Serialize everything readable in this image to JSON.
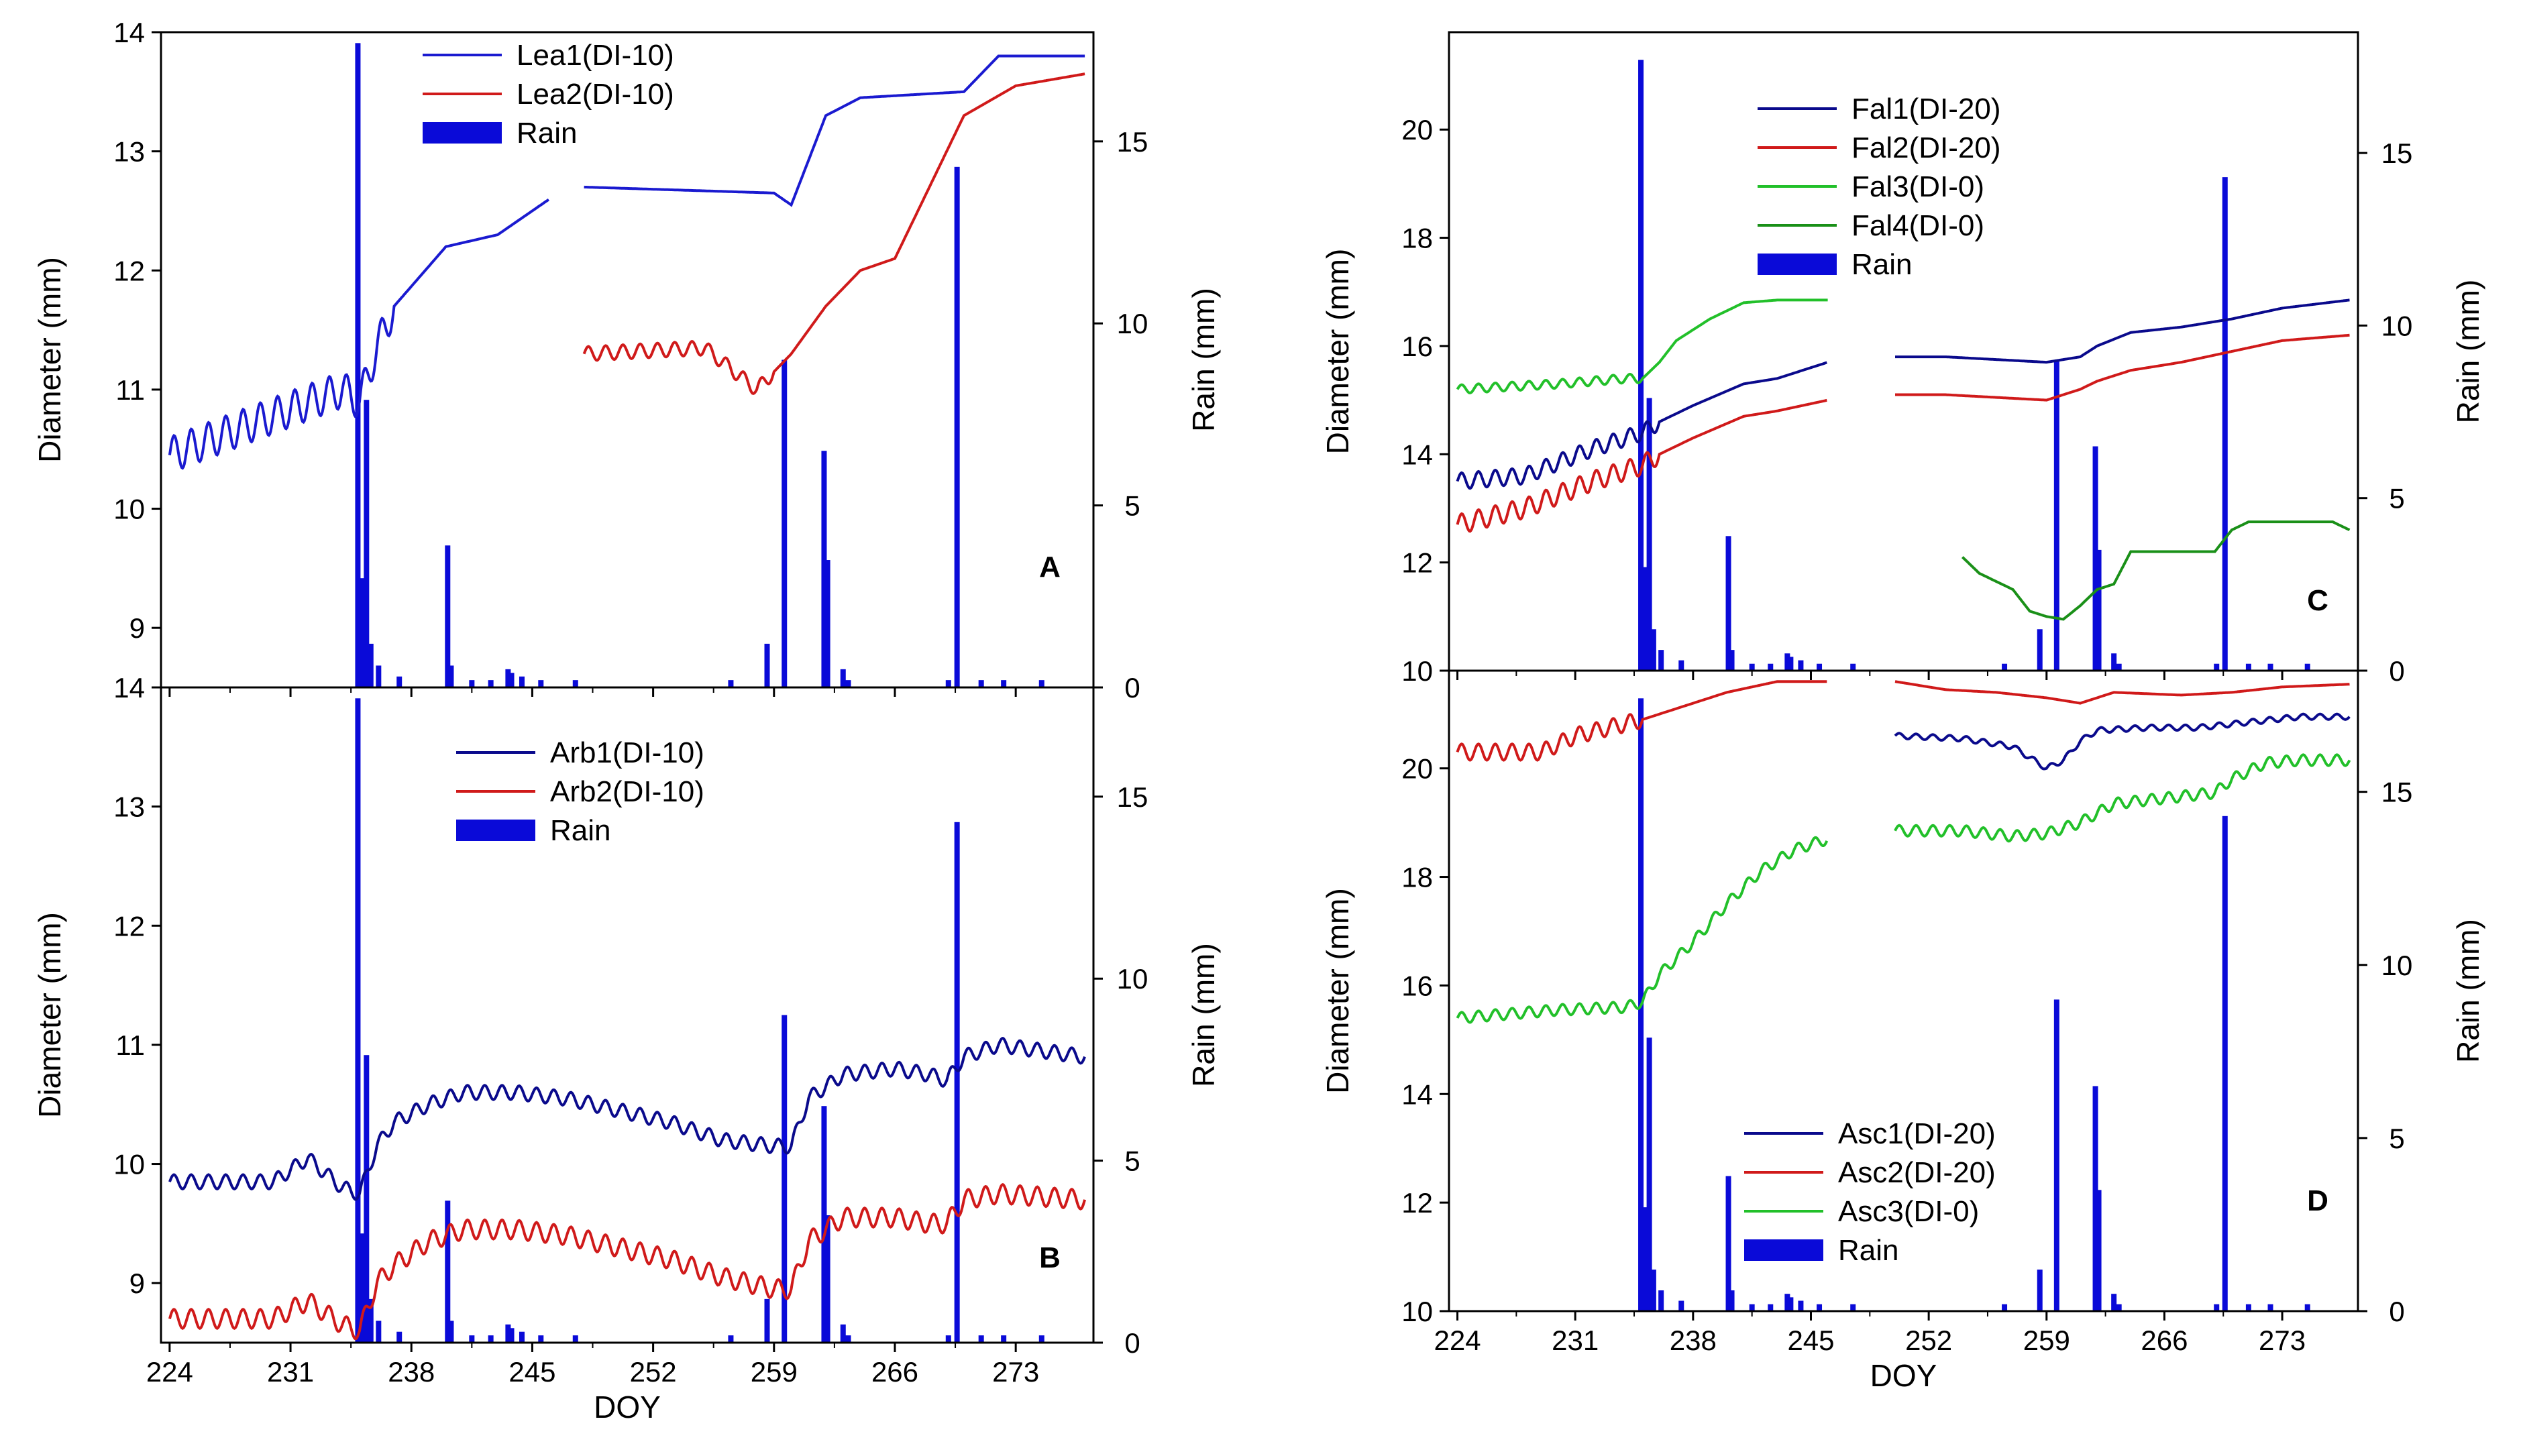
{
  "chart_data": [
    {
      "type": "line",
      "panel": "A",
      "ylabel": "Diameter (mm)",
      "y2label": "Rain (mm)",
      "xlabel": "",
      "xlim": [
        223.5,
        277.5
      ],
      "ylim": [
        8.5,
        14
      ],
      "y2lim": [
        0,
        18
      ],
      "xticks": [
        224,
        231,
        238,
        245,
        252,
        259,
        266,
        273
      ],
      "xtick_labels": [],
      "yticks": [
        9,
        10,
        11,
        12,
        13,
        14
      ],
      "ytick_labels": [
        "9",
        "10",
        "11",
        "12",
        "13",
        "14"
      ],
      "y2ticks": [
        0,
        5,
        10,
        15
      ],
      "y2tick_labels": [
        "0",
        "5",
        "10",
        "15"
      ],
      "legend_position": "top-left",
      "series": [
        {
          "name": "Lea1(DI-10)",
          "color": "#1a1ad0",
          "gap": [
            246,
            248
          ],
          "x": [
            224,
            234,
            235,
            236,
            237,
            240,
            243,
            246,
            248,
            259,
            260,
            262,
            264,
            270,
            272,
            277
          ],
          "y": [
            10.45,
            11.0,
            10.9,
            11.35,
            11.7,
            12.2,
            12.3,
            12.6,
            12.7,
            12.65,
            12.55,
            13.3,
            13.45,
            13.5,
            13.8,
            13.8
          ],
          "osc": 0.15,
          "osc_end": 237
        },
        {
          "name": "Lea2(DI-10)",
          "color": "#d01a1a",
          "x": [
            248,
            255,
            258,
            260,
            262,
            264,
            266,
            268,
            270,
            273,
            277
          ],
          "y": [
            11.3,
            11.35,
            11.0,
            11.3,
            11.7,
            12.0,
            12.1,
            12.7,
            13.3,
            13.55,
            13.65
          ],
          "osc": 0.06,
          "osc_end": 259
        }
      ],
      "rain": {
        "name": "Rain",
        "color": "#0a0ad8",
        "x": [
          234.9,
          235.15,
          235.4,
          235.65,
          236.1,
          237.3,
          240.1,
          240.3,
          241.5,
          242.6,
          243.6,
          243.8,
          244.4,
          245.5,
          247.5,
          256.5,
          258.6,
          259.6,
          261.9,
          262.1,
          263.0,
          263.3,
          269.1,
          269.6,
          271.0,
          272.3,
          274.5
        ],
        "v": [
          17.7,
          3.0,
          7.9,
          1.2,
          0.6,
          0.3,
          3.9,
          0.6,
          0.2,
          0.2,
          0.5,
          0.4,
          0.3,
          0.2,
          0.2,
          0.2,
          1.2,
          9.0,
          6.5,
          3.5,
          0.5,
          0.2,
          0.2,
          14.3,
          0.2,
          0.2,
          0.2
        ]
      }
    },
    {
      "type": "line",
      "panel": "B",
      "ylabel": "Diameter (mm)",
      "y2label": "Rain (mm)",
      "xlabel": "DOY",
      "xlim": [
        223.5,
        277.5
      ],
      "ylim": [
        8.5,
        14
      ],
      "y2lim": [
        0,
        18
      ],
      "xticks": [
        224,
        231,
        238,
        245,
        252,
        259,
        266,
        273
      ],
      "xtick_labels": [
        "224",
        "231",
        "238",
        "245",
        "252",
        "259",
        "266",
        "273"
      ],
      "yticks": [
        9,
        10,
        11,
        12,
        13,
        14
      ],
      "ytick_labels": [
        "9",
        "10",
        "11",
        "12",
        "13",
        "14"
      ],
      "y2ticks": [
        0,
        5,
        10,
        15
      ],
      "y2tick_labels": [
        "0",
        "5",
        "10",
        "15"
      ],
      "legend_position": "top-center",
      "series": [
        {
          "name": "Arb1(DI-10)",
          "color": "#0a0a8c",
          "x": [
            224,
            230,
            232,
            234,
            235,
            236,
            237,
            239,
            241,
            244,
            247,
            250,
            253,
            256,
            259,
            260,
            261,
            263,
            266,
            268,
            269,
            270,
            272,
            277
          ],
          "y": [
            9.85,
            9.85,
            10.05,
            9.8,
            9.75,
            10.15,
            10.35,
            10.5,
            10.6,
            10.6,
            10.55,
            10.45,
            10.35,
            10.2,
            10.15,
            10.15,
            10.55,
            10.75,
            10.8,
            10.75,
            10.7,
            10.9,
            11.0,
            10.9
          ],
          "osc": 0.06
        },
        {
          "name": "Arb2(DI-10)",
          "color": "#d01a1a",
          "x": [
            224,
            230,
            232,
            234,
            235,
            236,
            237,
            239,
            241,
            244,
            247,
            250,
            253,
            256,
            259,
            260,
            261,
            263,
            266,
            268,
            269,
            270,
            272,
            277
          ],
          "y": [
            8.7,
            8.7,
            8.85,
            8.65,
            8.6,
            9.0,
            9.15,
            9.35,
            9.45,
            9.45,
            9.4,
            9.3,
            9.2,
            9.05,
            8.95,
            8.95,
            9.35,
            9.55,
            9.55,
            9.5,
            9.5,
            9.7,
            9.75,
            9.7
          ],
          "osc": 0.08
        }
      ],
      "rain": {
        "name": "Rain",
        "color": "#0a0ad8",
        "x": [
          234.9,
          235.15,
          235.4,
          235.65,
          236.1,
          237.3,
          240.1,
          240.3,
          241.5,
          242.6,
          243.6,
          243.8,
          244.4,
          245.5,
          247.5,
          256.5,
          258.6,
          259.6,
          261.9,
          262.1,
          263.0,
          263.3,
          269.1,
          269.6,
          271.0,
          272.3,
          274.5
        ],
        "v": [
          17.7,
          3.0,
          7.9,
          1.2,
          0.6,
          0.3,
          3.9,
          0.6,
          0.2,
          0.2,
          0.5,
          0.4,
          0.3,
          0.2,
          0.2,
          0.2,
          1.2,
          9.0,
          6.5,
          3.5,
          0.5,
          0.2,
          0.2,
          14.3,
          0.2,
          0.2,
          0.2
        ]
      }
    },
    {
      "type": "line",
      "panel": "C",
      "ylabel": "Diameter (mm)",
      "y2label": "Rain (mm)",
      "xlabel": "",
      "xlim": [
        223.5,
        277.5
      ],
      "ylim": [
        10,
        21.8
      ],
      "y2lim": [
        0,
        18.5
      ],
      "xticks": [
        224,
        231,
        238,
        245,
        252,
        259,
        266,
        273
      ],
      "xtick_labels": [],
      "yticks": [
        10,
        12,
        14,
        16,
        18,
        20
      ],
      "ytick_labels": [
        "10",
        "12",
        "14",
        "16",
        "18",
        "20"
      ],
      "y2ticks": [
        0,
        5,
        10,
        15
      ],
      "y2tick_labels": [
        "0",
        "5",
        "10",
        "15"
      ],
      "legend_position": "top-center",
      "series": [
        {
          "name": "Fal1(DI-20)",
          "color": "#0a0a8c",
          "gap": [
            246,
            250
          ],
          "x": [
            224,
            228,
            232,
            235,
            236,
            238,
            241,
            243,
            246,
            250,
            253,
            256,
            259,
            261,
            262,
            264,
            267,
            270,
            273,
            277
          ],
          "y": [
            13.5,
            13.6,
            14.1,
            14.4,
            14.6,
            14.9,
            15.3,
            15.4,
            15.7,
            15.8,
            15.8,
            15.75,
            15.7,
            15.8,
            16.0,
            16.25,
            16.35,
            16.5,
            16.7,
            16.85
          ],
          "osc": 0.15,
          "osc_end": 236
        },
        {
          "name": "Fal2(DI-20)",
          "color": "#d01a1a",
          "gap": [
            246,
            250
          ],
          "x": [
            224,
            228,
            232,
            235,
            236,
            238,
            241,
            243,
            246,
            250,
            253,
            256,
            259,
            261,
            262,
            264,
            267,
            270,
            273,
            277
          ],
          "y": [
            12.7,
            13.0,
            13.5,
            13.8,
            14.0,
            14.3,
            14.7,
            14.8,
            15.0,
            15.1,
            15.1,
            15.05,
            15.0,
            15.2,
            15.35,
            15.55,
            15.7,
            15.9,
            16.1,
            16.2
          ],
          "osc": 0.18,
          "osc_end": 236
        },
        {
          "name": "Fal3(DI-0)",
          "color": "#22c02a",
          "x": [
            224,
            230,
            234,
            235,
            236,
            237,
            239,
            241,
            243,
            246
          ],
          "y": [
            15.2,
            15.3,
            15.4,
            15.4,
            15.7,
            16.1,
            16.5,
            16.8,
            16.85,
            16.85
          ],
          "osc": 0.08,
          "osc_end": 235
        },
        {
          "name": "Fal4(DI-0)",
          "color": "#1a9018",
          "x": [
            254,
            255,
            257,
            258,
            259,
            260,
            261,
            262,
            263,
            264,
            269,
            270,
            271,
            276,
            277
          ],
          "y": [
            12.1,
            11.8,
            11.5,
            11.1,
            11.0,
            10.95,
            11.2,
            11.5,
            11.6,
            12.2,
            12.2,
            12.6,
            12.75,
            12.75,
            12.6
          ]
        }
      ],
      "rain": {
        "name": "Rain",
        "color": "#0a0ad8",
        "x": [
          234.9,
          235.15,
          235.4,
          235.65,
          236.1,
          237.3,
          240.1,
          240.3,
          241.5,
          242.6,
          243.6,
          243.8,
          244.4,
          245.5,
          247.5,
          256.5,
          258.6,
          259.6,
          261.9,
          262.1,
          263.0,
          263.3,
          269.1,
          269.6,
          271.0,
          272.3,
          274.5
        ],
        "v": [
          17.7,
          3.0,
          7.9,
          1.2,
          0.6,
          0.3,
          3.9,
          0.6,
          0.2,
          0.2,
          0.5,
          0.4,
          0.3,
          0.2,
          0.2,
          0.2,
          1.2,
          9.0,
          6.5,
          3.5,
          0.5,
          0.2,
          0.2,
          14.3,
          0.2,
          0.2,
          0.2
        ]
      }
    },
    {
      "type": "line",
      "panel": "D",
      "ylabel": "Diameter (mm)",
      "y2label": "Rain (mm)",
      "xlabel": "DOY",
      "xlim": [
        223.5,
        277.5
      ],
      "ylim": [
        10,
        21.8
      ],
      "y2lim": [
        0,
        18.5
      ],
      "xticks": [
        224,
        231,
        238,
        245,
        252,
        259,
        266,
        273
      ],
      "xtick_labels": [
        "224",
        "231",
        "238",
        "245",
        "252",
        "259",
        "266",
        "273"
      ],
      "yticks": [
        10,
        12,
        14,
        16,
        18,
        20
      ],
      "ytick_labels": [
        "10",
        "12",
        "14",
        "16",
        "18",
        "20"
      ],
      "y2ticks": [
        0,
        5,
        10,
        15
      ],
      "y2tick_labels": [
        "0",
        "5",
        "10",
        "15"
      ],
      "legend_position": "bottom-center",
      "series": [
        {
          "name": "Asc1(DI-20)",
          "color": "#0a0a8c",
          "x": [
            250,
            254,
            257,
            259,
            260,
            261,
            262,
            265,
            268,
            271,
            274,
            277
          ],
          "y": [
            20.6,
            20.55,
            20.4,
            20.0,
            20.15,
            20.5,
            20.7,
            20.75,
            20.75,
            20.85,
            20.95,
            20.95
          ],
          "osc": 0.05
        },
        {
          "name": "Asc2(DI-20)",
          "color": "#d01a1a",
          "gap": [
            246,
            250
          ],
          "x": [
            224,
            229,
            231,
            235,
            237,
            240,
            243,
            246,
            250,
            253,
            256,
            259,
            261,
            263,
            267,
            270,
            273,
            277
          ],
          "y": [
            20.3,
            20.3,
            20.6,
            20.9,
            21.1,
            21.4,
            21.6,
            21.6,
            21.6,
            21.45,
            21.4,
            21.3,
            21.2,
            21.4,
            21.35,
            21.4,
            21.5,
            21.55
          ],
          "osc": 0.15,
          "osc_end": 235
        },
        {
          "name": "Asc3(DI-0)",
          "color": "#22c02a",
          "gap": [
            246,
            250
          ],
          "x": [
            224,
            230,
            234,
            235,
            236,
            238,
            240,
            242,
            244,
            246,
            250,
            254,
            257,
            259,
            261,
            263,
            266,
            269,
            270,
            272,
            274,
            277
          ],
          "y": [
            15.4,
            15.55,
            15.6,
            15.7,
            16.2,
            16.8,
            17.5,
            18.1,
            18.5,
            18.7,
            18.85,
            18.85,
            18.75,
            18.8,
            19.0,
            19.35,
            19.45,
            19.55,
            19.8,
            20.1,
            20.15,
            20.15
          ],
          "osc": 0.1
        }
      ],
      "rain": {
        "name": "Rain",
        "color": "#0a0ad8",
        "x": [
          234.9,
          235.15,
          235.4,
          235.65,
          236.1,
          237.3,
          240.1,
          240.3,
          241.5,
          242.6,
          243.6,
          243.8,
          244.4,
          245.5,
          247.5,
          256.5,
          258.6,
          259.6,
          261.9,
          262.1,
          263.0,
          263.3,
          269.1,
          269.6,
          271.0,
          272.3,
          274.5
        ],
        "v": [
          17.7,
          3.0,
          7.9,
          1.2,
          0.6,
          0.3,
          3.9,
          0.6,
          0.2,
          0.2,
          0.5,
          0.4,
          0.3,
          0.2,
          0.2,
          0.2,
          1.2,
          9.0,
          6.5,
          3.5,
          0.5,
          0.2,
          0.2,
          14.3,
          0.2,
          0.2,
          0.2
        ]
      }
    }
  ]
}
